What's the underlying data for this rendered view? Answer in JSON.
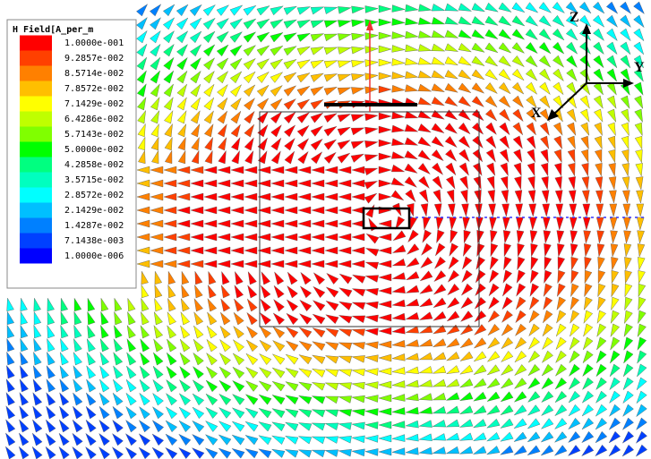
{
  "legend": {
    "title": "H Field[A_per_m",
    "entries": [
      {
        "label": "1.0000e-001",
        "color": "#ff0000"
      },
      {
        "label": "9.2857e-002",
        "color": "#ff4000"
      },
      {
        "label": "8.5714e-002",
        "color": "#ff8000"
      },
      {
        "label": "7.8572e-002",
        "color": "#ffbf00"
      },
      {
        "label": "7.1429e-002",
        "color": "#ffff00"
      },
      {
        "label": "6.4286e-002",
        "color": "#bfff00"
      },
      {
        "label": "5.7143e-002",
        "color": "#80ff00"
      },
      {
        "label": "5.0000e-002",
        "color": "#00ff00"
      },
      {
        "label": "4.2858e-002",
        "color": "#00ff80"
      },
      {
        "label": "3.5715e-002",
        "color": "#00ffbf"
      },
      {
        "label": "2.8572e-002",
        "color": "#00ffff"
      },
      {
        "label": "2.1429e-002",
        "color": "#00bfff"
      },
      {
        "label": "1.4287e-002",
        "color": "#0080ff"
      },
      {
        "label": "7.1438e-003",
        "color": "#0040ff"
      },
      {
        "label": "1.0000e-006",
        "color": "#0000ff"
      }
    ]
  },
  "axes": {
    "z": "Z",
    "y": "Y",
    "x": "X"
  }
}
